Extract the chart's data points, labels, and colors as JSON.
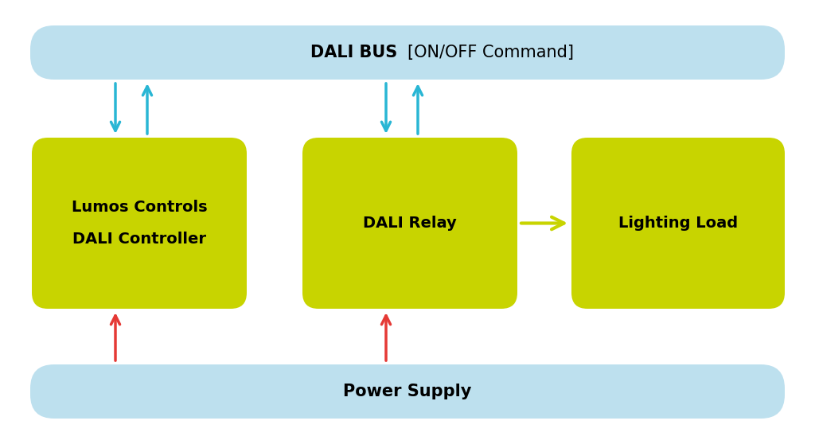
{
  "bg_color": "#ffffff",
  "bus_bar_color": "#bde0ee",
  "power_bar_color": "#bde0ee",
  "box_color": "#c8d400",
  "bus_text_bold": "DALI BUS ",
  "bus_text_normal": "[ON/OFF Command]",
  "power_text": "Power Supply",
  "box1_line1": "Lumos Controls",
  "box1_line2": "DALI Controller",
  "box2_text": "DALI Relay",
  "box3_text": "Lighting Load",
  "arrow_blue": "#29b6d4",
  "arrow_red": "#e53935",
  "arrow_green": "#c8d400",
  "font_size_box": 14,
  "font_size_bar": 15,
  "fig_w": 10.24,
  "fig_h": 5.58,
  "dpi": 100
}
